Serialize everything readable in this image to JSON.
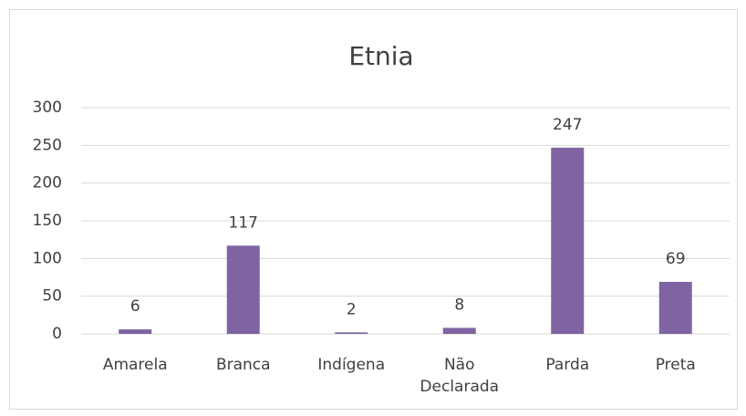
{
  "chart_data": {
    "type": "bar",
    "title": "Etnia",
    "categories": [
      "Amarela",
      "Branca",
      "Indígena",
      "Não Declarada",
      "Parda",
      "Preta"
    ],
    "values": [
      6,
      117,
      2,
      8,
      247,
      69
    ],
    "color": "#8064a2",
    "ylim": [
      0,
      300
    ],
    "yticks": [
      0,
      50,
      100,
      150,
      200,
      250,
      300
    ],
    "grid": true
  }
}
